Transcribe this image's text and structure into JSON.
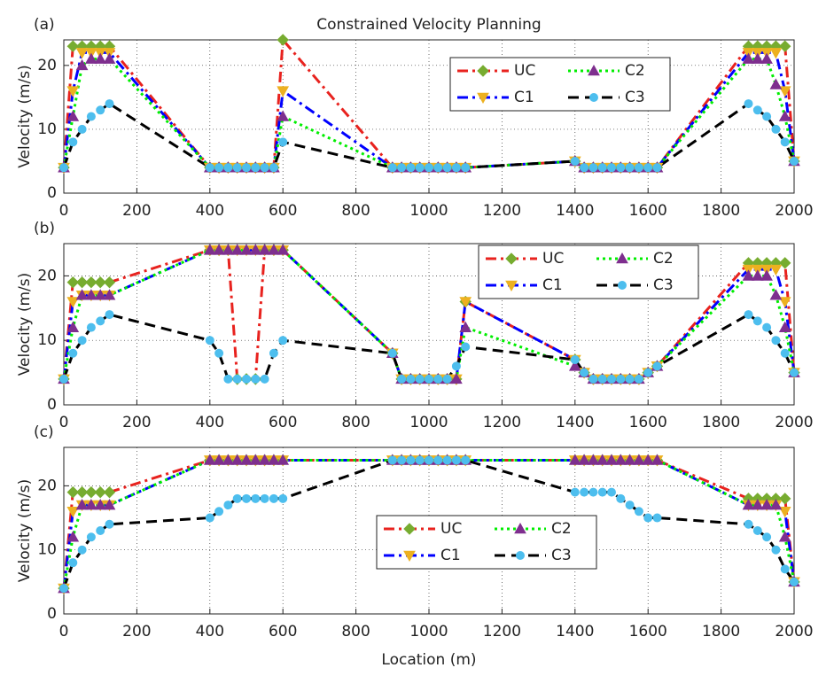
{
  "chart_data": [
    {
      "type": "line",
      "label": "(a)",
      "title": "Constrained Velocity Planning",
      "ylabel": "Velocity (m/s)",
      "x": [
        0,
        25,
        50,
        75,
        100,
        125,
        400,
        425,
        450,
        475,
        500,
        525,
        550,
        575,
        600,
        900,
        925,
        950,
        975,
        1000,
        1025,
        1050,
        1075,
        1100,
        1400,
        1425,
        1450,
        1475,
        1500,
        1525,
        1550,
        1575,
        1600,
        1625,
        1875,
        1900,
        1925,
        1950,
        1975,
        2000
      ],
      "xlim": [
        0,
        2000
      ],
      "xticks": [
        0,
        200,
        400,
        600,
        800,
        1000,
        1200,
        1400,
        1600,
        1800,
        2000
      ],
      "ylim": [
        0,
        24
      ],
      "yticks": [
        0,
        10,
        20
      ],
      "grid": true,
      "series": [
        {
          "name": "UC",
          "color": "#e8221e",
          "linestyle": "dashdot",
          "marker": "diamond",
          "marker_color": "#77ac30",
          "values": [
            4,
            23,
            23,
            23,
            23,
            23,
            4,
            4,
            4,
            4,
            4,
            4,
            4,
            4,
            24,
            4,
            4,
            4,
            4,
            4,
            4,
            4,
            4,
            4,
            5,
            4,
            4,
            4,
            4,
            4,
            4,
            4,
            4,
            4,
            23,
            23,
            23,
            23,
            23,
            5
          ]
        },
        {
          "name": "C1",
          "color": "#0000ff",
          "linestyle": "dashdot",
          "marker": "triangle-down",
          "marker_color": "#edb120",
          "values": [
            4,
            16,
            22,
            22,
            22,
            22,
            4,
            4,
            4,
            4,
            4,
            4,
            4,
            4,
            16,
            4,
            4,
            4,
            4,
            4,
            4,
            4,
            4,
            4,
            5,
            4,
            4,
            4,
            4,
            4,
            4,
            4,
            4,
            4,
            22,
            22,
            22,
            22,
            16,
            5
          ]
        },
        {
          "name": "C2",
          "color": "#00ee00",
          "linestyle": "dotted",
          "marker": "triangle-up",
          "marker_color": "#7e2f8e",
          "values": [
            4,
            12,
            20,
            21,
            21,
            21,
            4,
            4,
            4,
            4,
            4,
            4,
            4,
            4,
            12,
            4,
            4,
            4,
            4,
            4,
            4,
            4,
            4,
            4,
            5,
            4,
            4,
            4,
            4,
            4,
            4,
            4,
            4,
            4,
            21,
            21,
            21,
            17,
            12,
            5
          ]
        },
        {
          "name": "C3",
          "color": "#000000",
          "linestyle": "dashed",
          "marker": "circle",
          "marker_color": "#4dbeee",
          "values": [
            4,
            8,
            10,
            12,
            13,
            14,
            4,
            4,
            4,
            4,
            4,
            4,
            4,
            4,
            8,
            4,
            4,
            4,
            4,
            4,
            4,
            4,
            4,
            4,
            5,
            4,
            4,
            4,
            4,
            4,
            4,
            4,
            4,
            4,
            14,
            13,
            12,
            10,
            8,
            5
          ]
        }
      ]
    },
    {
      "type": "line",
      "label": "(b)",
      "ylabel": "Velocity (m/s)",
      "x": [
        0,
        25,
        50,
        75,
        100,
        125,
        400,
        425,
        450,
        475,
        500,
        525,
        550,
        575,
        600,
        900,
        925,
        950,
        975,
        1000,
        1025,
        1050,
        1075,
        1100,
        1400,
        1425,
        1450,
        1475,
        1500,
        1525,
        1550,
        1575,
        1600,
        1625,
        1875,
        1900,
        1925,
        1950,
        1975,
        2000
      ],
      "xlim": [
        0,
        2000
      ],
      "xticks": [
        0,
        200,
        400,
        600,
        800,
        1000,
        1200,
        1400,
        1600,
        1800,
        2000
      ],
      "ylim": [
        0,
        25
      ],
      "yticks": [
        0,
        10,
        20
      ],
      "grid": true,
      "series": [
        {
          "name": "UC",
          "color": "#e8221e",
          "linestyle": "dashdot",
          "marker": "diamond",
          "marker_color": "#77ac30",
          "values": [
            4,
            19,
            19,
            19,
            19,
            19,
            24,
            24,
            24,
            4,
            4,
            4,
            24,
            24,
            24,
            8,
            4,
            4,
            4,
            4,
            4,
            4,
            4,
            16,
            7,
            5,
            4,
            4,
            4,
            4,
            4,
            4,
            5,
            6,
            22,
            22,
            22,
            22,
            22,
            5
          ]
        },
        {
          "name": "C1",
          "color": "#0000ff",
          "linestyle": "dashdot",
          "marker": "triangle-down",
          "marker_color": "#edb120",
          "values": [
            4,
            16,
            17,
            17,
            17,
            17,
            24,
            24,
            24,
            24,
            24,
            24,
            24,
            24,
            24,
            8,
            4,
            4,
            4,
            4,
            4,
            4,
            4,
            16,
            7,
            5,
            4,
            4,
            4,
            4,
            4,
            4,
            5,
            6,
            21,
            21,
            21,
            21,
            16,
            5
          ]
        },
        {
          "name": "C2",
          "color": "#00ee00",
          "linestyle": "dotted",
          "marker": "triangle-up",
          "marker_color": "#7e2f8e",
          "values": [
            4,
            12,
            17,
            17,
            17,
            17,
            24,
            24,
            24,
            24,
            24,
            24,
            24,
            24,
            24,
            8,
            4,
            4,
            4,
            4,
            4,
            4,
            4,
            12,
            6,
            5,
            4,
            4,
            4,
            4,
            4,
            4,
            5,
            6,
            20,
            20,
            20,
            17,
            12,
            5
          ]
        },
        {
          "name": "C3",
          "color": "#000000",
          "linestyle": "dashed",
          "marker": "circle",
          "marker_color": "#4dbeee",
          "values": [
            4,
            8,
            10,
            12,
            13,
            14,
            10,
            8,
            4,
            4,
            4,
            4,
            4,
            8,
            10,
            8,
            4,
            4,
            4,
            4,
            4,
            4,
            6,
            9,
            7,
            5,
            4,
            4,
            4,
            4,
            4,
            4,
            5,
            6,
            14,
            13,
            12,
            10,
            8,
            5
          ]
        }
      ]
    },
    {
      "type": "line",
      "label": "(c)",
      "ylabel": "Velocity (m/s)",
      "xlabel": "Location (m)",
      "x": [
        0,
        25,
        50,
        75,
        100,
        125,
        400,
        425,
        450,
        475,
        500,
        525,
        550,
        575,
        600,
        900,
        925,
        950,
        975,
        1000,
        1025,
        1050,
        1075,
        1100,
        1400,
        1425,
        1450,
        1475,
        1500,
        1525,
        1550,
        1575,
        1600,
        1625,
        1875,
        1900,
        1925,
        1950,
        1975,
        2000
      ],
      "xlim": [
        0,
        2000
      ],
      "xticks": [
        0,
        200,
        400,
        600,
        800,
        1000,
        1200,
        1400,
        1600,
        1800,
        2000
      ],
      "ylim": [
        0,
        26
      ],
      "yticks": [
        0,
        10,
        20
      ],
      "grid": true,
      "series": [
        {
          "name": "UC",
          "color": "#e8221e",
          "linestyle": "dashdot",
          "marker": "diamond",
          "marker_color": "#77ac30",
          "values": [
            4,
            19,
            19,
            19,
            19,
            19,
            24,
            24,
            24,
            24,
            24,
            24,
            24,
            24,
            24,
            24,
            24,
            24,
            24,
            24,
            24,
            24,
            24,
            24,
            24,
            24,
            24,
            24,
            24,
            24,
            24,
            24,
            24,
            24,
            18,
            18,
            18,
            18,
            18,
            5
          ]
        },
        {
          "name": "C1",
          "color": "#0000ff",
          "linestyle": "dashdot",
          "marker": "triangle-down",
          "marker_color": "#edb120",
          "values": [
            4,
            16,
            17,
            17,
            17,
            17,
            24,
            24,
            24,
            24,
            24,
            24,
            24,
            24,
            24,
            24,
            24,
            24,
            24,
            24,
            24,
            24,
            24,
            24,
            24,
            24,
            24,
            24,
            24,
            24,
            24,
            24,
            24,
            24,
            17,
            17,
            17,
            17,
            16,
            5
          ]
        },
        {
          "name": "C2",
          "color": "#00ee00",
          "linestyle": "dotted",
          "marker": "triangle-up",
          "marker_color": "#7e2f8e",
          "values": [
            4,
            12,
            17,
            17,
            17,
            17,
            24,
            24,
            24,
            24,
            24,
            24,
            24,
            24,
            24,
            24,
            24,
            24,
            24,
            24,
            24,
            24,
            24,
            24,
            24,
            24,
            24,
            24,
            24,
            24,
            24,
            24,
            24,
            24,
            17,
            17,
            17,
            17,
            12,
            5
          ]
        },
        {
          "name": "C3",
          "color": "#000000",
          "linestyle": "dashed",
          "marker": "circle",
          "marker_color": "#4dbeee",
          "values": [
            4,
            8,
            10,
            12,
            13,
            14,
            15,
            16,
            17,
            18,
            18,
            18,
            18,
            18,
            18,
            24,
            24,
            24,
            24,
            24,
            24,
            24,
            24,
            24,
            19,
            19,
            19,
            19,
            19,
            18,
            17,
            16,
            15,
            15,
            14,
            13,
            12,
            10,
            7,
            5
          ]
        }
      ]
    }
  ]
}
